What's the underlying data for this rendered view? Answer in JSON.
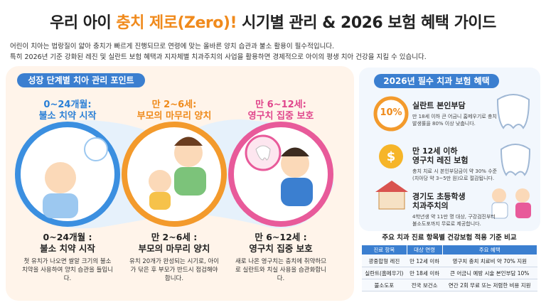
{
  "header": {
    "title_before": "우리 아이 ",
    "title_highlight": "충치 제로(Zero)!",
    "title_after": " 시기별 관리 & 2026 보험 혜택 가이드",
    "intro": [
      "어린이 치아는 법랑질이 얇아 충치가 빠르게 진행되므로 연령에 맞는 올바른 양치 습관과 불소 활용이 필수적입니다.",
      "특히 2026년 기준 강화된 레진 및 실란트 보험 혜택과 지자체별 치과주치의 사업을 활용하면 경제적으로 아이의 평생 치아 건강을 지킬 수 있습니다."
    ]
  },
  "stages": {
    "title": "성장 단계별 치아 관리 포인트",
    "items": [
      {
        "top": [
          "0~24개월:",
          "불소 치약 시작"
        ],
        "bottom": [
          "0~24개월 :",
          "불소 치약 시작"
        ],
        "desc": "첫 유치가 나오면 쌀알 크기의 불소 치약을 사용하여 양치 습관을 들입니다."
      },
      {
        "top": [
          "만 2~6세:",
          "부모의 마무리 양치"
        ],
        "bottom": [
          "만 2~6세 :",
          "부모의 마무리 양치"
        ],
        "desc": "유치 20개가 완성되는 시기로, 아이가 닦은 후 부모가 반드시 점검해야 합니다."
      },
      {
        "top": [
          "만 6~12세:",
          "영구치 집중 보호"
        ],
        "bottom": [
          "만 6~12세 :",
          "영구치 집중 보호"
        ],
        "desc": "새로 나온 영구치는 충치에 취약하므로 실란트와 치실 사용을 습관화합니다."
      }
    ]
  },
  "benefits": {
    "title": "2026년 필수 치과 보험 혜택",
    "items": [
      {
        "badge": "10%",
        "title": [
          "실란트 본인부담"
        ],
        "desc": "만 18세 이하 큰 어금니 홈메우기로 충치 발생률을 80% 이상 낮춥니다."
      },
      {
        "title": [
          "만 12세 이하",
          "영구치 레진 보험"
        ],
        "desc": "충치 치료 시 본인부담금이 약 30% 수준(치아당 약 3~5만 원)으로 절감됩니다."
      },
      {
        "title": [
          "경기도 초등학생",
          "치과주치의"
        ],
        "desc": "4학년생 약 11만 명 대상, 구강검진부터 불소도포까지 무료로 제공합니다."
      }
    ]
  },
  "table": {
    "title": "주요 치과 진료 항목별 건강보험 적용 기준 비교",
    "header": [
      "진료 항목",
      "대상 연령",
      "주요 혜택"
    ],
    "rows": [
      [
        "광중합형 레진",
        "만 12세 이하",
        "영구치 충치 치료비 약 70% 지원"
      ],
      [
        "실란트(홈메우기)",
        "만 18세 이하",
        "큰 어금니 예방 시술 본인부담 10%"
      ],
      [
        "불소도포",
        "전국 보건소",
        "연간 2회 무료 또는 저렴한 비용 지원"
      ]
    ]
  }
}
